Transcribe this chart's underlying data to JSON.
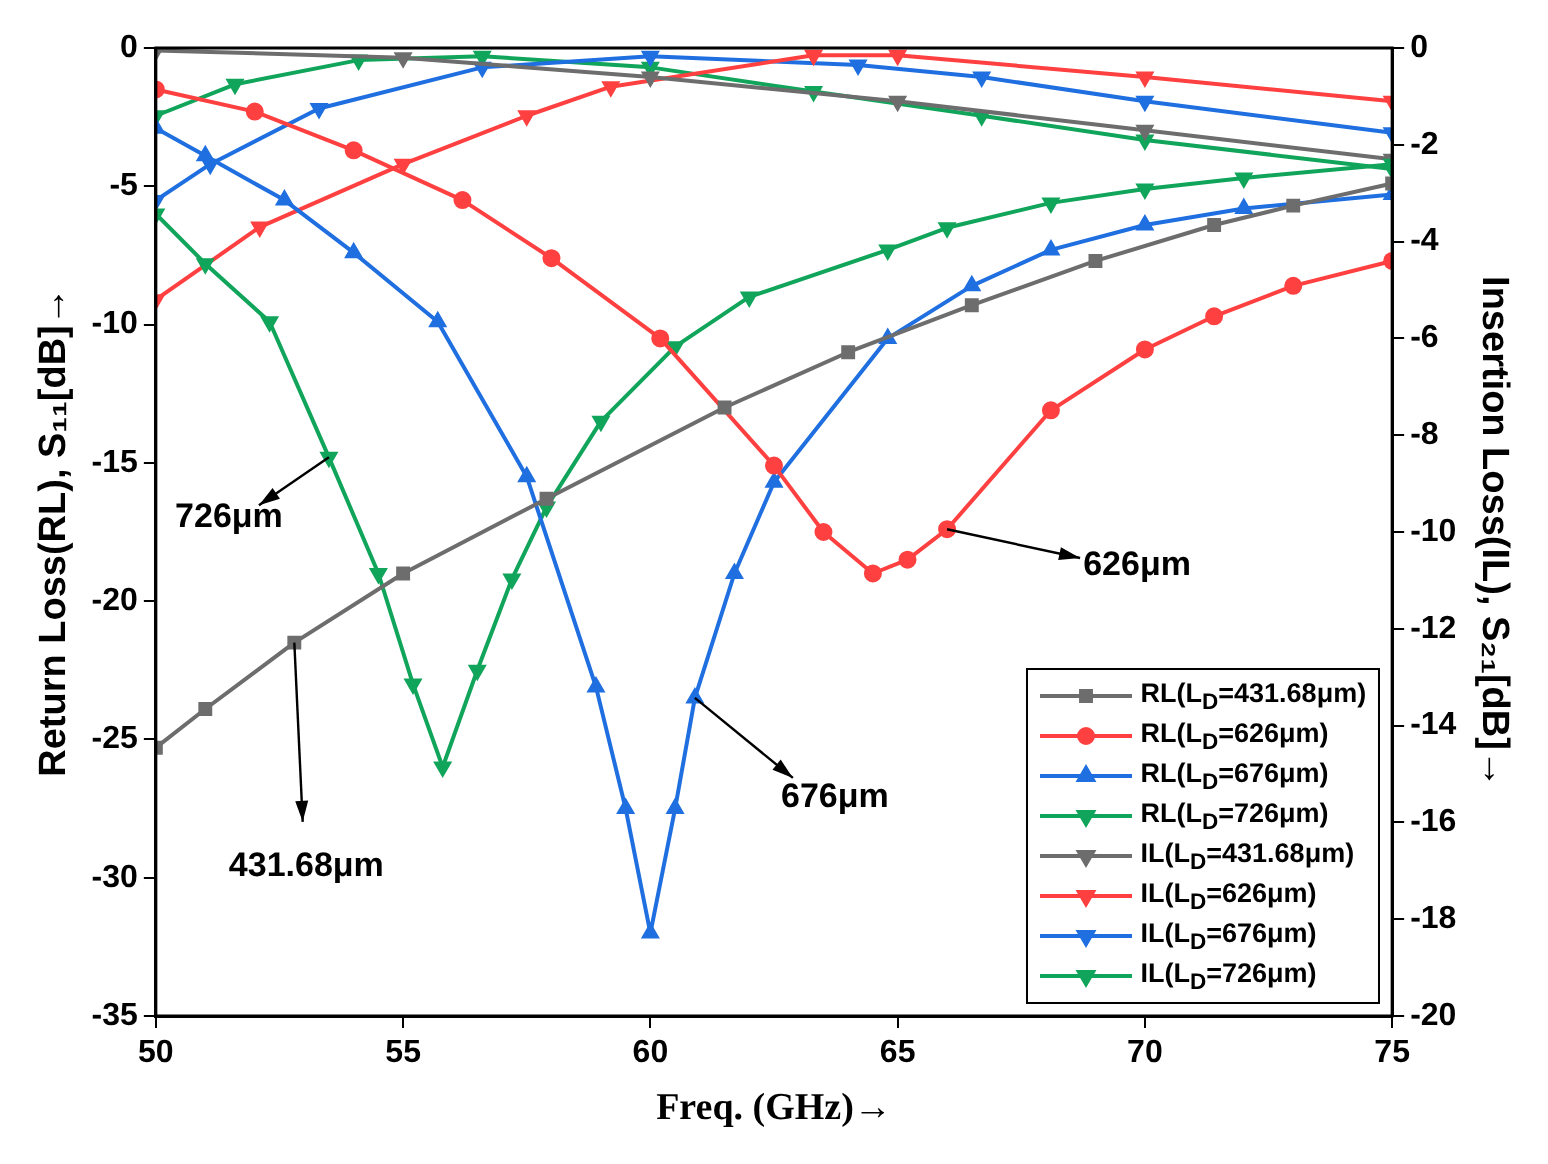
{
  "chart_data": {
    "type": "line",
    "xlabel": "Freq. (GHz)→",
    "ylabel": "Return Loss(RL), S₁₁[dB]→",
    "y2label": "Insertion Loss(IL), S₂₁[dB]→",
    "xlim": [
      50,
      75
    ],
    "xticks": [
      50,
      55,
      60,
      65,
      70,
      75
    ],
    "ylim": [
      -35,
      0
    ],
    "yticks": [
      -35,
      -30,
      -25,
      -20,
      -15,
      -10,
      -5,
      0
    ],
    "y2lim": [
      -20,
      0
    ],
    "y2ticks": [
      -20,
      -18,
      -16,
      -14,
      -12,
      -10,
      -8,
      -6,
      -4,
      -2,
      0
    ],
    "grid": false,
    "legend": "bottom right",
    "series": [
      {
        "name": "RL(L$_{D}$=431.68μm)",
        "color": "#6d6d6d",
        "marker": "square",
        "x": [
          50,
          51,
          52.8,
          55,
          57.9,
          61.5,
          64,
          66.5,
          69,
          71.4,
          73,
          75
        ],
        "values": [
          -25.3,
          -23.9,
          -21.5,
          -19,
          -16.3,
          -13,
          -11,
          -9.3,
          -7.7,
          -6.4,
          -5.7,
          -4.9
        ]
      },
      {
        "name": "RL(L$_{D}$=626μm)",
        "color": "#ff4040",
        "marker": "circle",
        "x": [
          50,
          52,
          54,
          56.2,
          58,
          60.2,
          62.5,
          63.5,
          64.5,
          65.2,
          66,
          68.1,
          70,
          71.4,
          73,
          75
        ],
        "values": [
          -1.5,
          -2.3,
          -3.7,
          -5.5,
          -7.6,
          -10.5,
          -15.1,
          -17.5,
          -19,
          -18.5,
          -17.4,
          -13.1,
          -10.9,
          -9.7,
          -8.6,
          -7.7
        ]
      },
      {
        "name": "RL(L$_{D}$=676μm)",
        "color": "#1f6fe0",
        "marker": "triangle",
        "x": [
          50,
          51,
          52.6,
          54,
          55.7,
          57.5,
          58.9,
          59.5,
          60,
          60.5,
          60.9,
          61.7,
          62.5,
          64.8,
          66.5,
          68.1,
          70,
          72,
          75
        ],
        "values": [
          -2.9,
          -3.9,
          -5.5,
          -7.4,
          -9.9,
          -15.5,
          -23.1,
          -27.5,
          -32,
          -27.5,
          -23.5,
          -19,
          -15.7,
          -10.5,
          -8.6,
          -7.3,
          -6.4,
          -5.8,
          -5.3
        ]
      },
      {
        "name": "RL(L$_{D}$=726μm)",
        "color": "#10a55a",
        "marker": "triangle-down",
        "x": [
          50,
          51,
          52.3,
          53.5,
          54.5,
          55.2,
          55.8,
          56.5,
          57.2,
          57.9,
          59,
          60.5,
          62,
          64.8,
          66,
          68.1,
          70,
          72,
          75
        ],
        "values": [
          -6,
          -7.8,
          -9.9,
          -14.8,
          -19,
          -23,
          -26,
          -22.5,
          -19.2,
          -16.6,
          -13.5,
          -10.8,
          -9,
          -7.3,
          -6.5,
          -5.6,
          -5.1,
          -4.7,
          -4.2
        ]
      },
      {
        "name": "IL(L$_{D}$=431.68μm)",
        "color": "#6d6d6d",
        "marker": "triangle-down",
        "axis": "y2",
        "x": [
          50,
          55,
          60,
          65,
          70,
          75
        ],
        "values": [
          -0.05,
          -0.2,
          -0.6,
          -1.1,
          -1.7,
          -2.3
        ]
      },
      {
        "name": "IL(L$_{D}$=626μm)",
        "color": "#ff4040",
        "marker": "triangle-down",
        "axis": "y2",
        "x": [
          50,
          52.1,
          55,
          57.5,
          59.2,
          63.3,
          65,
          70,
          75
        ],
        "values": [
          -5.2,
          -3.7,
          -2.4,
          -1.4,
          -0.8,
          -0.15,
          -0.15,
          -0.6,
          -1.1
        ]
      },
      {
        "name": "IL(L$_{D}$=676μm)",
        "color": "#1f6fe0",
        "marker": "triangle-down",
        "axis": "y2",
        "x": [
          50,
          51.1,
          53.3,
          56.6,
          60,
          64.2,
          66.7,
          70,
          75
        ],
        "values": [
          -3.15,
          -2.4,
          -1.25,
          -0.4,
          -0.17,
          -0.35,
          -0.6,
          -1.1,
          -1.75
        ]
      },
      {
        "name": "IL(L$_{D}$=726μm)",
        "color": "#10a55a",
        "marker": "triangle-down",
        "axis": "y2",
        "x": [
          50,
          51.6,
          54.1,
          56.6,
          60,
          63.3,
          66.7,
          70,
          75
        ],
        "values": [
          -1.4,
          -0.75,
          -0.25,
          -0.17,
          -0.4,
          -0.9,
          -1.4,
          -1.9,
          -2.5
        ]
      }
    ],
    "annotations": [
      {
        "text": "726μm",
        "x": 53.5,
        "y": -14.8
      },
      {
        "text": "626μm",
        "x": 66,
        "y": -17.4
      },
      {
        "text": "676μm",
        "x": 60.9,
        "y": -23.5
      },
      {
        "text": "431.68μm",
        "x": 52.8,
        "y": -21.5
      }
    ]
  }
}
